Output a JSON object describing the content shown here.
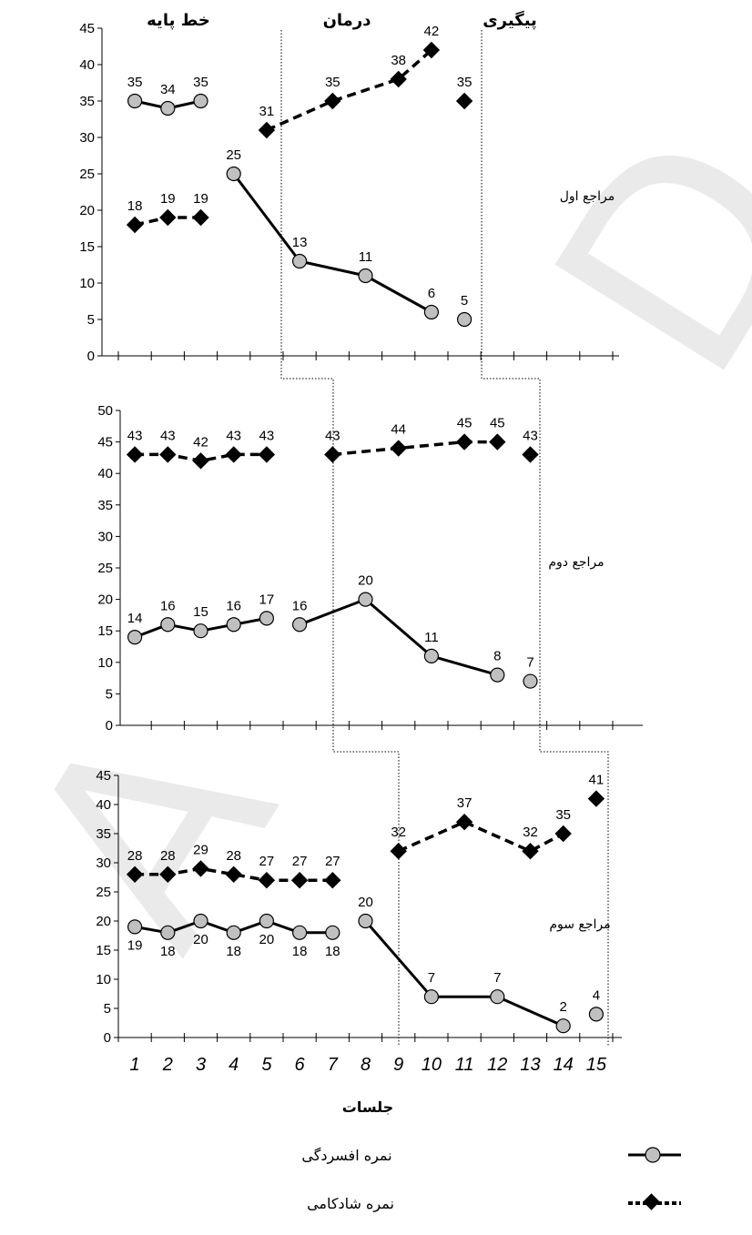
{
  "chart_data": {
    "type": "line",
    "x_categories": [
      "1",
      "2",
      "3",
      "4",
      "5",
      "6",
      "7",
      "8",
      "9",
      "10",
      "11",
      "12",
      "13",
      "14",
      "15"
    ],
    "xlabel": "جلسات",
    "phase_labels": [
      "خط پایه",
      "درمان",
      "پیگیری"
    ],
    "series_names": {
      "depression": "نمره افسردگی",
      "happiness": "نمره شادکامی"
    },
    "panels": [
      {
        "client": "مراجع اول",
        "ylim": [
          0,
          45
        ],
        "yticks": [
          0,
          5,
          10,
          15,
          20,
          25,
          30,
          35,
          40,
          45
        ],
        "depression": [
          {
            "x": 1,
            "y": 35
          },
          {
            "x": 2,
            "y": 34
          },
          {
            "x": 3,
            "y": 35
          },
          {
            "x": 4,
            "y": 25
          },
          {
            "x": 6,
            "y": 13
          },
          {
            "x": 8,
            "y": 11
          },
          {
            "x": 10,
            "y": 6
          },
          {
            "x": 11,
            "y": 5
          }
        ],
        "depression_segments": [
          [
            1,
            2,
            3
          ],
          [
            4,
            6,
            8,
            10
          ]
        ],
        "happiness": [
          {
            "x": 1,
            "y": 18
          },
          {
            "x": 2,
            "y": 19
          },
          {
            "x": 3,
            "y": 19
          },
          {
            "x": 5,
            "y": 31
          },
          {
            "x": 7,
            "y": 35
          },
          {
            "x": 9,
            "y": 38
          },
          {
            "x": 10,
            "y": 42
          },
          {
            "x": 11,
            "y": 35
          }
        ],
        "happiness_segments": [
          [
            1,
            2,
            3
          ],
          [
            5,
            7,
            9,
            10
          ]
        ]
      },
      {
        "client": "مراجع دوم",
        "ylim": [
          0,
          50
        ],
        "yticks": [
          0,
          5,
          10,
          15,
          20,
          25,
          30,
          35,
          40,
          45,
          50
        ],
        "depression": [
          {
            "x": 1,
            "y": 14
          },
          {
            "x": 2,
            "y": 16
          },
          {
            "x": 3,
            "y": 15
          },
          {
            "x": 4,
            "y": 16
          },
          {
            "x": 5,
            "y": 17
          },
          {
            "x": 6,
            "y": 16
          },
          {
            "x": 8,
            "y": 20
          },
          {
            "x": 10,
            "y": 11
          },
          {
            "x": 12,
            "y": 8
          },
          {
            "x": 13,
            "y": 7
          }
        ],
        "depression_segments": [
          [
            1,
            2,
            3,
            4,
            5
          ],
          [
            6,
            8,
            10,
            12
          ]
        ],
        "happiness": [
          {
            "x": 1,
            "y": 43
          },
          {
            "x": 2,
            "y": 43
          },
          {
            "x": 3,
            "y": 42
          },
          {
            "x": 4,
            "y": 43
          },
          {
            "x": 5,
            "y": 43
          },
          {
            "x": 7,
            "y": 43
          },
          {
            "x": 9,
            "y": 44
          },
          {
            "x": 11,
            "y": 45
          },
          {
            "x": 12,
            "y": 45
          },
          {
            "x": 13,
            "y": 43
          }
        ],
        "happiness_segments": [
          [
            1,
            2,
            3,
            4,
            5
          ],
          [
            7,
            9,
            11,
            12
          ]
        ]
      },
      {
        "client": "مراجع سوم",
        "ylim": [
          0,
          45
        ],
        "yticks": [
          0,
          5,
          10,
          15,
          20,
          25,
          30,
          35,
          40,
          45
        ],
        "depression": [
          {
            "x": 1,
            "y": 19
          },
          {
            "x": 2,
            "y": 18
          },
          {
            "x": 3,
            "y": 20
          },
          {
            "x": 4,
            "y": 18
          },
          {
            "x": 5,
            "y": 20
          },
          {
            "x": 6,
            "y": 18
          },
          {
            "x": 7,
            "y": 18
          },
          {
            "x": 8,
            "y": 20
          },
          {
            "x": 10,
            "y": 7
          },
          {
            "x": 12,
            "y": 7
          },
          {
            "x": 14,
            "y": 2
          },
          {
            "x": 15,
            "y": 4
          }
        ],
        "depression_segments": [
          [
            1,
            2,
            3,
            4,
            5,
            6,
            7
          ],
          [
            8,
            10,
            12,
            14
          ]
        ],
        "happiness": [
          {
            "x": 1,
            "y": 28
          },
          {
            "x": 2,
            "y": 28
          },
          {
            "x": 3,
            "y": 29
          },
          {
            "x": 4,
            "y": 28
          },
          {
            "x": 5,
            "y": 27
          },
          {
            "x": 6,
            "y": 27
          },
          {
            "x": 7,
            "y": 27
          },
          {
            "x": 9,
            "y": 32
          },
          {
            "x": 11,
            "y": 37
          },
          {
            "x": 13,
            "y": 32
          },
          {
            "x": 14,
            "y": 35
          },
          {
            "x": 15,
            "y": 41
          }
        ],
        "happiness_segments": [
          [
            1,
            2,
            3,
            4,
            5,
            6,
            7
          ],
          [
            9,
            11,
            13,
            14
          ]
        ]
      }
    ],
    "colors": {
      "line": "#000000",
      "circle_fill": "#c0c0c0",
      "diamond_fill": "#000000",
      "watermark": "#d9d9d9"
    }
  },
  "watermark": "AD"
}
